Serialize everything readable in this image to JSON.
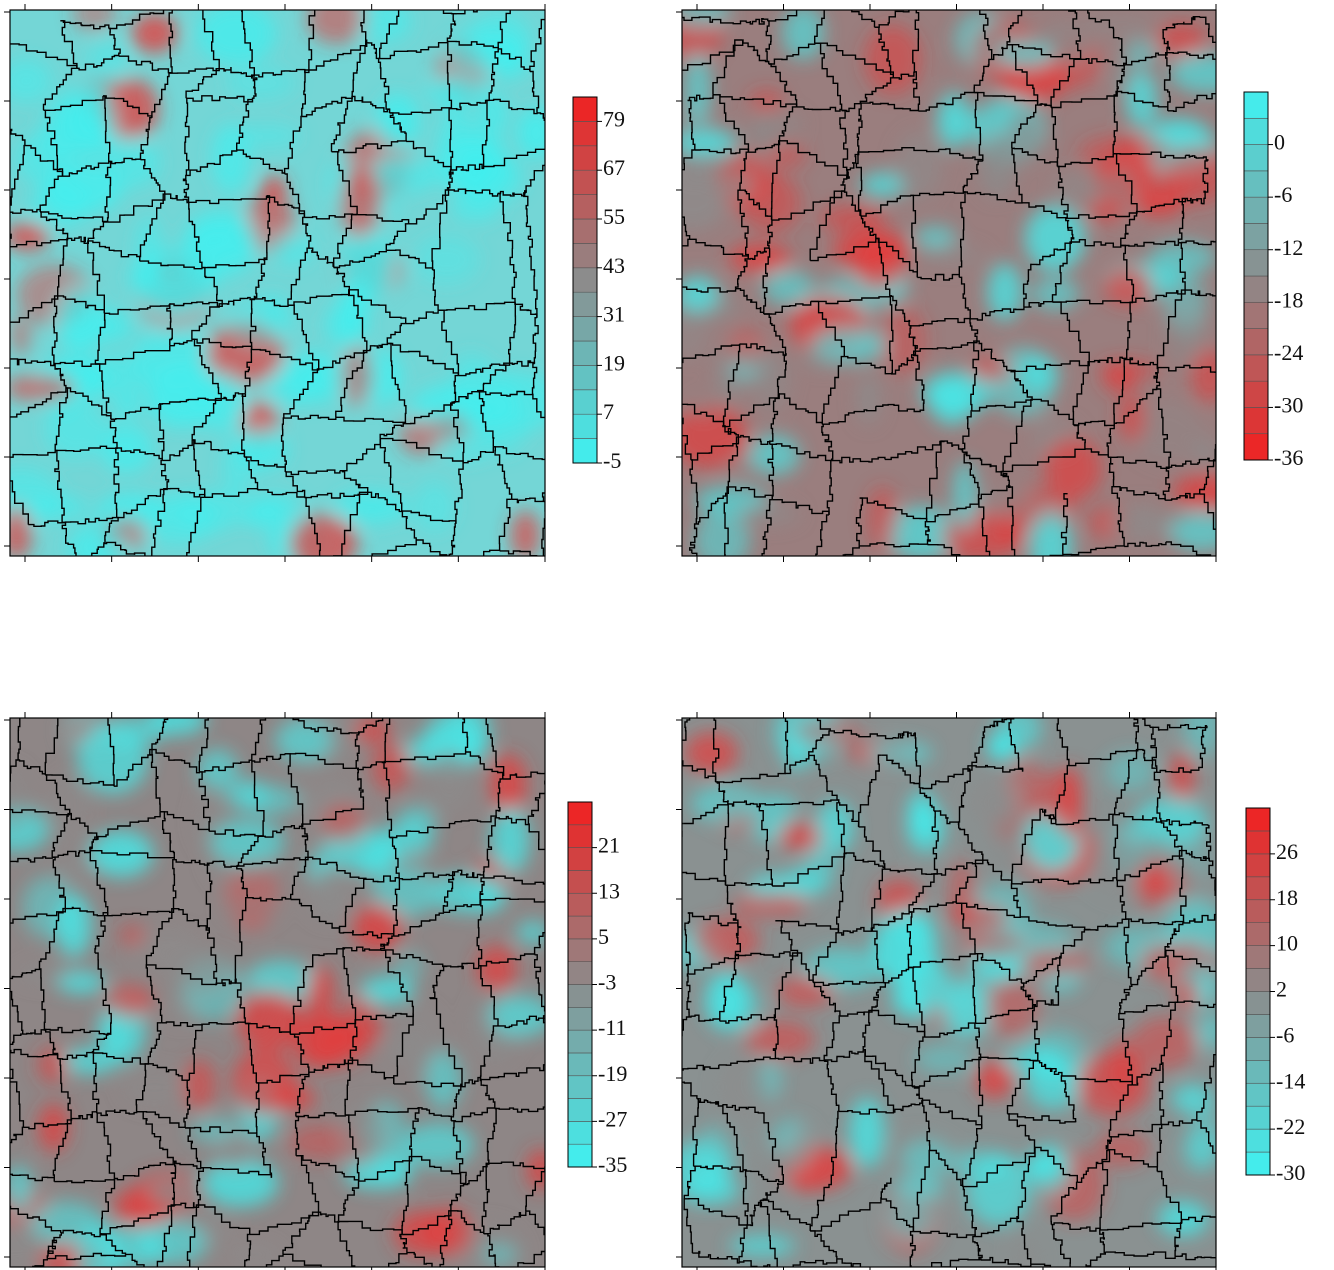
{
  "chart_data": [
    {
      "type": "heatmap",
      "clim": [
        -5,
        85
      ],
      "ticks": [
        79,
        67,
        55,
        43,
        31,
        19,
        7,
        -5
      ],
      "low_color": "#3ff2f2",
      "mid_color": "#8c8c8c",
      "high_color": "#f21f1f"
    },
    {
      "type": "heatmap",
      "clim": [
        -36,
        6
      ],
      "ticks": [
        0,
        -6,
        -12,
        -18,
        -24,
        -30,
        -36
      ],
      "low_color": "#f21f1f",
      "mid_color": "#8c8c8c",
      "high_color": "#3ff2f2"
    },
    {
      "type": "heatmap",
      "clim": [
        -35,
        29
      ],
      "ticks": [
        21,
        13,
        5,
        -3,
        -11,
        -19,
        -27,
        -35
      ],
      "low_color": "#3ff2f2",
      "mid_color": "#8c8c8c",
      "high_color": "#f21f1f"
    },
    {
      "type": "heatmap",
      "clim": [
        -30,
        34
      ],
      "ticks": [
        26,
        18,
        10,
        2,
        -6,
        -14,
        -22,
        -30
      ],
      "low_color": "#3ff2f2",
      "mid_color": "#8c8c8c",
      "high_color": "#f21f1f"
    }
  ]
}
